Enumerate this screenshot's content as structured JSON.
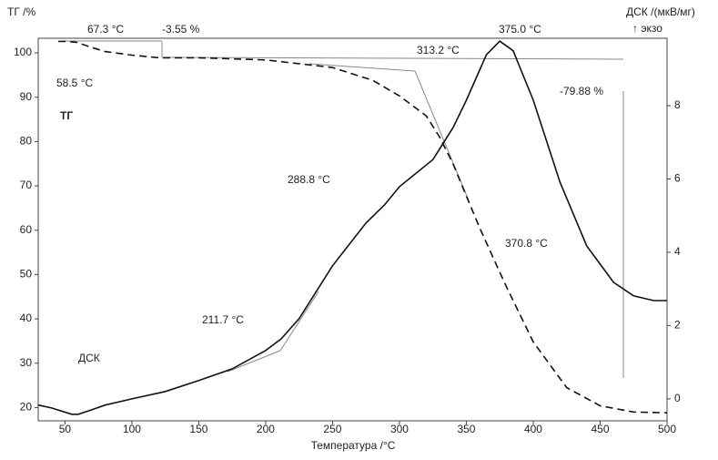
{
  "chart_data": {
    "type": "line",
    "y_label": "ТГ /%",
    "y2_label": "ДСК /(мкВ/мг)",
    "y2_note": "↑ экзо",
    "x_label": "Температура /°C",
    "xlim": [
      30,
      500
    ],
    "xticks": [
      50,
      100,
      150,
      200,
      250,
      300,
      350,
      400,
      450,
      500
    ],
    "ylim": [
      17,
      103.3
    ],
    "yticks": [
      20,
      30,
      40,
      50,
      60,
      70,
      80,
      90,
      100
    ],
    "y2lim": [
      -0.6,
      9.84
    ],
    "y2ticks": [
      0,
      2,
      4,
      6,
      8
    ],
    "series": [
      {
        "name": "ТГ",
        "color": "#111111",
        "style": "dashed",
        "x": [
          45,
          50,
          58.5,
          67.3,
          80,
          100,
          120,
          150,
          200,
          250,
          280,
          300,
          320,
          330,
          340,
          350,
          360,
          370.8,
          380,
          390,
          400,
          425,
          450,
          475,
          500
        ],
        "values": [
          102.6,
          102.6,
          102.4,
          101.5,
          100.3,
          99.5,
          98.9,
          98.9,
          98.4,
          96.7,
          93.8,
          90.3,
          85.8,
          81,
          75,
          67.7,
          60.5,
          53.3,
          47.2,
          41,
          34.8,
          24.5,
          20.4,
          19,
          18.8
        ]
      },
      {
        "name": "ДСК",
        "color": "#111111",
        "style": "solid",
        "axis": "y2",
        "x": [
          30,
          40,
          55,
          60,
          70,
          80,
          100,
          125,
          150,
          175,
          200,
          211.7,
          225,
          250,
          275,
          288.8,
          300,
          325,
          340,
          350,
          365,
          375,
          385,
          400,
          420,
          440,
          460,
          475,
          490,
          500
        ],
        "values": [
          -0.17,
          -0.25,
          -0.42,
          -0.42,
          -0.3,
          -0.17,
          0,
          0.2,
          0.5,
          0.82,
          1.32,
          1.64,
          2.19,
          3.63,
          4.8,
          5.29,
          5.79,
          6.53,
          7.4,
          8.15,
          9.39,
          9.76,
          9.5,
          8.15,
          5.91,
          4.17,
          3.18,
          2.81,
          2.68,
          2.68
        ]
      }
    ],
    "annotations": [
      "67.3 °C",
      "-3.55 %",
      "58.5 °C",
      "313.2 °C",
      "375.0 °C",
      "-79.88 %",
      "288.8 °C",
      "211.7 °C",
      "370.8 °C"
    ]
  }
}
